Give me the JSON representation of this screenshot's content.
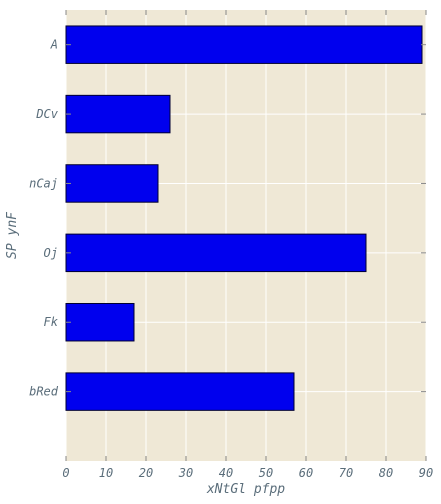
{
  "chart_data": {
    "type": "bar",
    "orientation": "horizontal",
    "title": "",
    "categories": [
      "A",
      "DCv",
      "nCaj",
      "Oj",
      "Fk",
      "bRed"
    ],
    "values": [
      89,
      26,
      23,
      75,
      17,
      57
    ],
    "xlabel": "xNtGl pfpp",
    "ylabel": "SP ynF",
    "xlim": [
      0,
      90
    ],
    "xticks": [
      0,
      10,
      20,
      30,
      40,
      50,
      60,
      70,
      80,
      90
    ],
    "grid": true,
    "colors": {
      "bar": "#0000ee",
      "bar_edge": "#000033",
      "plot_bg": "#efe8d6",
      "grid": "#ffffff",
      "text": "#5a6d7a",
      "tick": "#8a8a8a"
    }
  }
}
